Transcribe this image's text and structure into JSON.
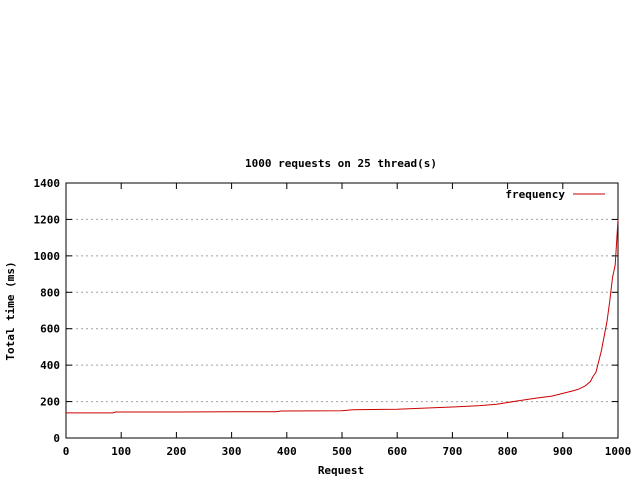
{
  "chart_data": {
    "type": "line",
    "title": "1000 requests on 25 thread(s)",
    "xlabel": "Request",
    "ylabel": "Total time (ms)",
    "xlim": [
      0,
      1000
    ],
    "ylim": [
      0,
      1400
    ],
    "x_ticks": [
      0,
      100,
      200,
      300,
      400,
      500,
      600,
      700,
      800,
      900,
      1000
    ],
    "y_ticks": [
      0,
      200,
      400,
      600,
      800,
      1000,
      1200,
      1400
    ],
    "grid": "horizontal dotted",
    "legend_position": "top-right",
    "series": [
      {
        "name": "frequency",
        "color": "#cc0000",
        "x": [
          0,
          85,
          90,
          200,
          300,
          380,
          390,
          500,
          520,
          600,
          660,
          700,
          750,
          780,
          800,
          820,
          850,
          880,
          900,
          920,
          930,
          940,
          950,
          955,
          960,
          965,
          970,
          975,
          980,
          985,
          990,
          995,
          1000
        ],
        "y": [
          138,
          138,
          143,
          143,
          144,
          144,
          148,
          150,
          155,
          158,
          165,
          170,
          178,
          185,
          195,
          205,
          218,
          230,
          245,
          260,
          270,
          285,
          310,
          340,
          360,
          420,
          480,
          560,
          640,
          750,
          880,
          950,
          1200
        ]
      }
    ]
  }
}
